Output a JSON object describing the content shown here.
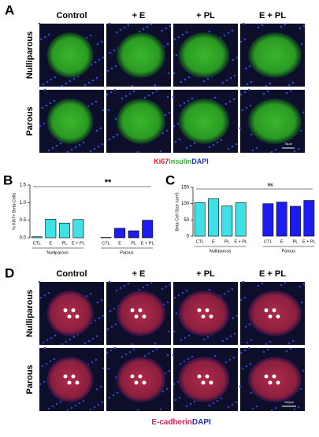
{
  "panel_a": {
    "letter": "A",
    "columns": [
      "Control",
      "+ E",
      "+ PL",
      "E + PL"
    ],
    "rows": [
      "Nulliparous",
      "Parous"
    ],
    "stain": [
      "Ki67",
      "Insulin",
      "DAPI"
    ],
    "scale_bar": "75μm"
  },
  "charts": [
    {
      "type": "bar",
      "letter": "B",
      "ylabel": "% Ki67+ Beta-Cells",
      "ylim": [
        0,
        1.5
      ],
      "yticks": [
        {
          "value": 0,
          "label": "0.0"
        },
        0.5,
        {
          "value": 1,
          "label": "1.0"
        },
        1.5
      ],
      "annotation": "**",
      "groups": [
        {
          "name": "Nulliparous",
          "color": "#3fe0e6",
          "categories": [
            "CTL",
            "E",
            "PL",
            "E + PL"
          ],
          "values": [
            0.03,
            0.53,
            0.42,
            0.52
          ]
        },
        {
          "name": "Parous",
          "color": "#1c1cf0",
          "categories": [
            "CTL",
            "E",
            "PL",
            "E + PL"
          ],
          "values": [
            0.01,
            0.27,
            0.2,
            0.5
          ]
        }
      ]
    },
    {
      "type": "bar",
      "letter": "C",
      "ylabel": "Beta Cell Size (um²)",
      "ylim": [
        0,
        150
      ],
      "yticks": [
        0,
        50,
        100,
        150
      ],
      "annotation": "ns",
      "groups": [
        {
          "name": "Nulliparous",
          "color": "#3fe0e6",
          "categories": [
            "CTL",
            "E",
            "PL",
            "E + PL"
          ],
          "values": [
            103,
            115,
            93,
            103
          ]
        },
        {
          "name": "Parous",
          "color": "#1c1cf0",
          "categories": [
            "CTL",
            "E",
            "PL",
            "E + PL"
          ],
          "values": [
            100,
            105,
            92,
            110
          ]
        }
      ]
    }
  ],
  "panel_d": {
    "letter": "D",
    "columns": [
      "Control",
      "+ E",
      "+ PL",
      "E + PL"
    ],
    "rows": [
      "Nulliparous",
      "Parous"
    ],
    "stain": [
      "E-cadherin",
      "DAPI"
    ],
    "scale_bar": "100μm"
  }
}
